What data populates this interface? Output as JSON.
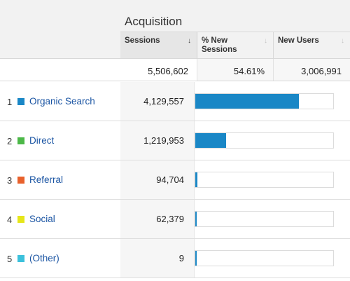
{
  "table": {
    "group_title": "Acquisition",
    "columns": {
      "sessions": "Sessions",
      "new_sessions": "% New Sessions",
      "new_users": "New Users"
    },
    "sort_icon": "down-arrow-icon",
    "totals": {
      "sessions": "5,506,602",
      "new_sessions": "54.61%",
      "new_users": "3,006,991"
    },
    "bar_color": "#1a87c6",
    "rows": [
      {
        "rank": "1",
        "channel": "Organic Search",
        "color": "#1a87c6",
        "sessions": "4,129,557",
        "share": 0.7499
      },
      {
        "rank": "2",
        "channel": "Direct",
        "color": "#4cb848",
        "sessions": "1,219,953",
        "share": 0.2215
      },
      {
        "rank": "3",
        "channel": "Referral",
        "color": "#e8612c",
        "sessions": "94,704",
        "share": 0.0172
      },
      {
        "rank": "4",
        "channel": "Social",
        "color": "#e6e619",
        "sessions": "62,379",
        "share": 0.0113
      },
      {
        "rank": "5",
        "channel": "(Other)",
        "color": "#3cc1dc",
        "sessions": "9",
        "share": 1.6e-06
      }
    ]
  }
}
